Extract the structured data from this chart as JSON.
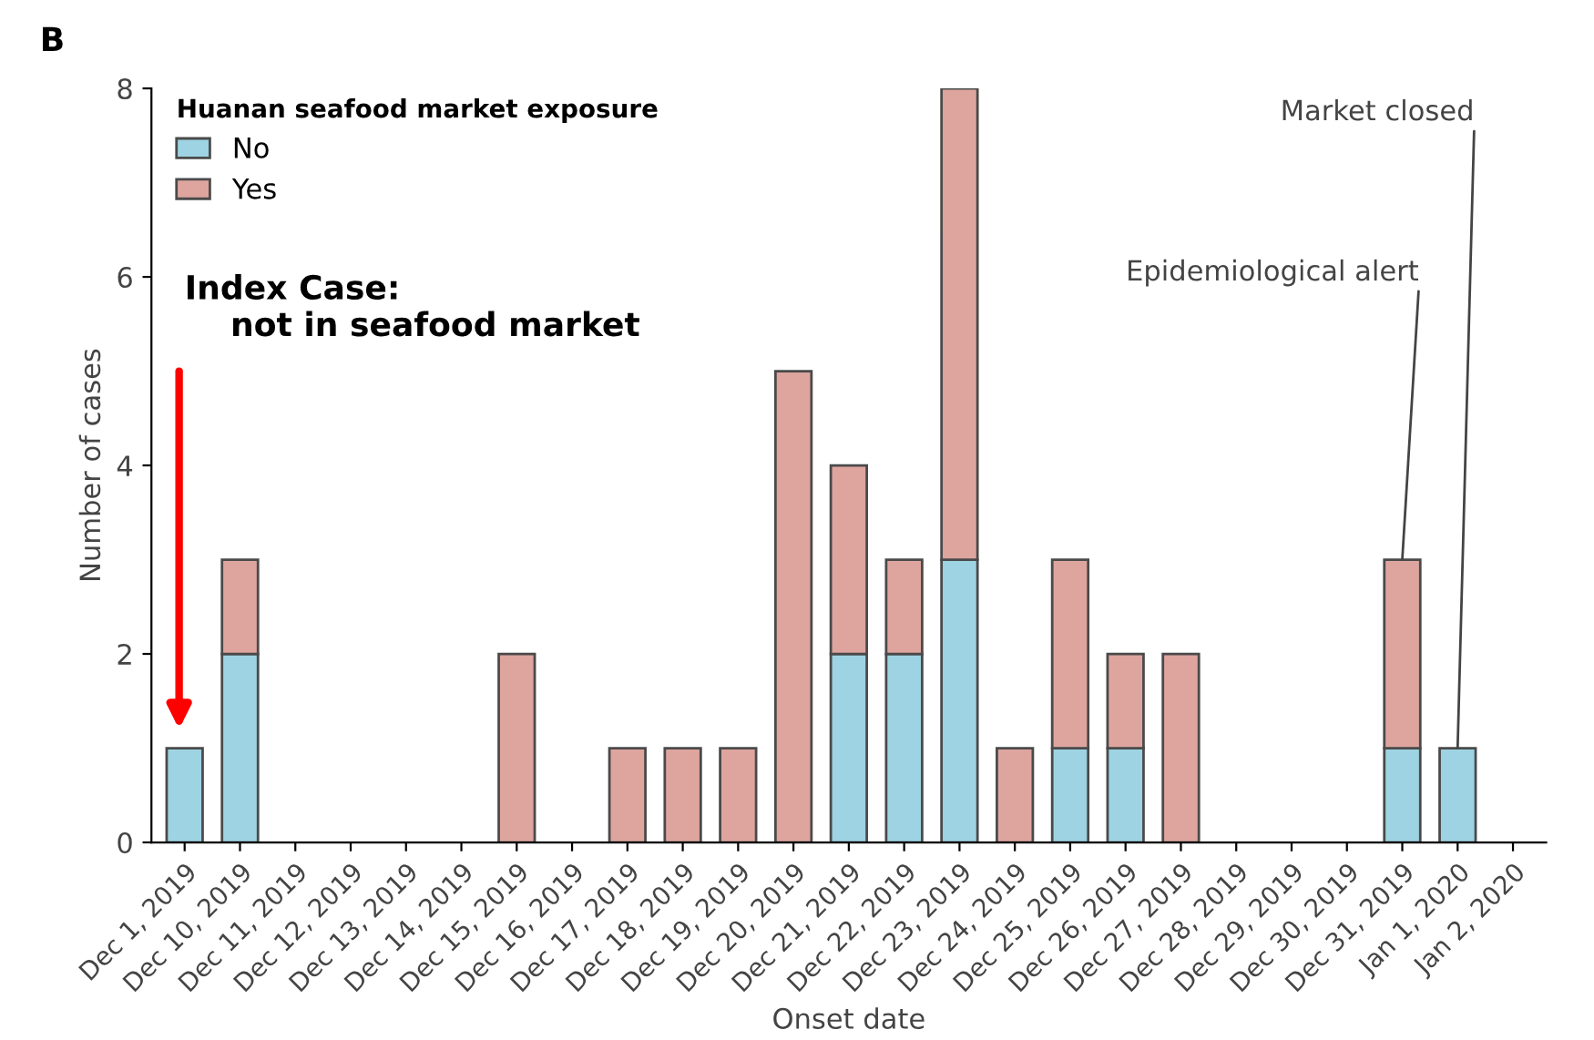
{
  "chart_data": {
    "type": "bar",
    "stacked": true,
    "xlabel": "Onset date",
    "ylabel": "Number of cases",
    "legend_title": "Huanan seafood market exposure",
    "legend": "top left",
    "grid": false,
    "categories": [
      "Dec 1, 2019",
      "Dec 10, 2019",
      "Dec 11, 2019",
      "Dec 12, 2019",
      "Dec 13, 2019",
      "Dec 14, 2019",
      "Dec 15, 2019",
      "Dec 16, 2019",
      "Dec 17, 2019",
      "Dec 18, 2019",
      "Dec 19, 2019",
      "Dec 20, 2019",
      "Dec 21, 2019",
      "Dec 22, 2019",
      "Dec 23, 2019",
      "Dec 24, 2019",
      "Dec 25, 2019",
      "Dec 26, 2019",
      "Dec 27, 2019",
      "Dec 28, 2019",
      "Dec 29, 2019",
      "Dec 30, 2019",
      "Dec 31, 2019",
      "Jan 1, 2020",
      "Jan 2, 2020"
    ],
    "series": [
      {
        "name": "No",
        "color": "#9dd3e2",
        "values": [
          1,
          2,
          0,
          0,
          0,
          0,
          0,
          0,
          0,
          0,
          0,
          0,
          2,
          2,
          3,
          0,
          1,
          1,
          0,
          0,
          0,
          0,
          1,
          1,
          0
        ]
      },
      {
        "name": "Yes",
        "color": "#dea59f",
        "values": [
          0,
          1,
          0,
          0,
          0,
          0,
          2,
          0,
          1,
          1,
          1,
          5,
          2,
          1,
          5,
          1,
          2,
          1,
          2,
          0,
          0,
          0,
          2,
          0,
          0
        ]
      }
    ],
    "ylim": [
      0,
      8
    ],
    "yticks": [
      0,
      2,
      4,
      6,
      8
    ],
    "annotations": [
      "B",
      "Index Case:\n    not in seafood market",
      {
        "text": "Epidemiological alert",
        "x": "Dec 31, 2019",
        "y": 3
      },
      {
        "text": "Market closed",
        "x": "Jan 1, 2020",
        "y": 1
      }
    ]
  }
}
